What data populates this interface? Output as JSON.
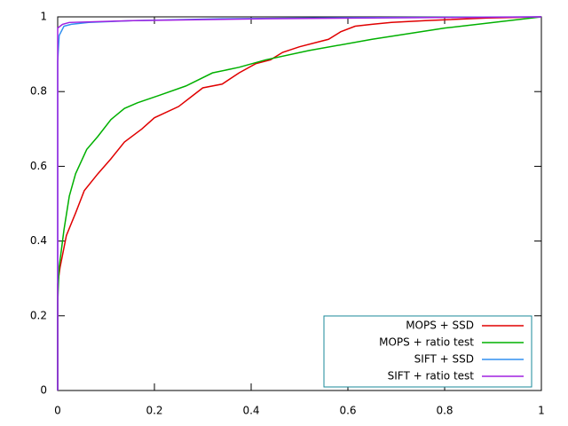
{
  "chart_data": {
    "type": "line",
    "series": [
      {
        "name": "MOPS + SSD",
        "color": "#e00000",
        "x": [
          0,
          0,
          0.005,
          0.018,
          0.037,
          0.055,
          0.083,
          0.11,
          0.138,
          0.174,
          0.2,
          0.25,
          0.275,
          0.3,
          0.34,
          0.375,
          0.41,
          0.44,
          0.465,
          0.5,
          0.56,
          0.585,
          0.615,
          0.65,
          0.69,
          0.76,
          0.89,
          1
        ],
        "values": [
          0,
          0.285,
          0.33,
          0.415,
          0.475,
          0.535,
          0.58,
          0.62,
          0.665,
          0.7,
          0.73,
          0.76,
          0.785,
          0.81,
          0.82,
          0.85,
          0.875,
          0.885,
          0.905,
          0.92,
          0.94,
          0.96,
          0.975,
          0.98,
          0.985,
          0.99,
          0.997,
          1
        ]
      },
      {
        "name": "MOPS + ratio test",
        "color": "#00b000",
        "x": [
          0,
          0,
          0.003,
          0.013,
          0.024,
          0.037,
          0.06,
          0.083,
          0.11,
          0.138,
          0.165,
          0.21,
          0.265,
          0.32,
          0.375,
          0.43,
          0.52,
          0.65,
          0.8,
          1
        ],
        "values": [
          0,
          0.235,
          0.33,
          0.43,
          0.52,
          0.58,
          0.645,
          0.68,
          0.725,
          0.755,
          0.77,
          0.79,
          0.815,
          0.85,
          0.865,
          0.885,
          0.91,
          0.94,
          0.97,
          1
        ]
      },
      {
        "name": "SIFT + SSD",
        "color": "#3090f0",
        "x": [
          0,
          0,
          0.003,
          0.013,
          0.028,
          0.064,
          0.156,
          0.34,
          0.615,
          1
        ],
        "values": [
          0,
          0.88,
          0.95,
          0.975,
          0.98,
          0.985,
          0.99,
          0.995,
          0.998,
          1
        ]
      },
      {
        "name": "SIFT + ratio test",
        "color": "#a020e0",
        "x": [
          0,
          0,
          0.01,
          0.024,
          0.156,
          0.43,
          1
        ],
        "values": [
          0,
          0.97,
          0.98,
          0.985,
          0.99,
          0.995,
          1
        ]
      }
    ],
    "xlim": [
      0,
      1
    ],
    "xticks": [
      0,
      0.2,
      0.4,
      0.6,
      0.8,
      1
    ],
    "ylim": [
      0,
      1
    ],
    "yticks": [
      0,
      0.2,
      0.4,
      0.6,
      0.8,
      1
    ],
    "grid": false,
    "legend": "bottom-right"
  }
}
